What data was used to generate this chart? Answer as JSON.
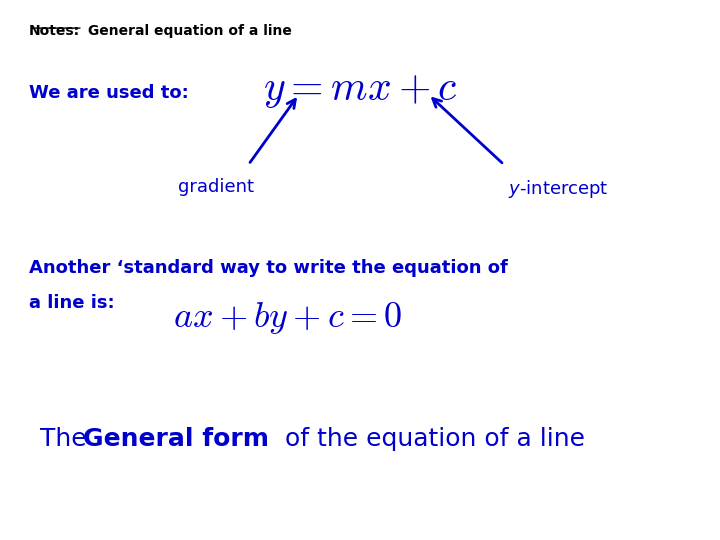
{
  "background_color": "#ffffff",
  "title_text": "Notes:",
  "title_rest": " General equation of a line",
  "we_are_used_to": "We are used to:",
  "eq1": "$y = mx + c$",
  "gradient_label": "gradient",
  "intercept_label": "$y$-intercept",
  "another_line1": "Another ‘standard way to write the equation of",
  "another_line2": "a line is:",
  "eq2": "$ax + by + c = 0$",
  "bottom_text_normal1": "The ",
  "bottom_text_bold": "General form",
  "bottom_text_normal2": " of the equation of a line",
  "blue_color": "#0000cc",
  "black_color": "#000000"
}
